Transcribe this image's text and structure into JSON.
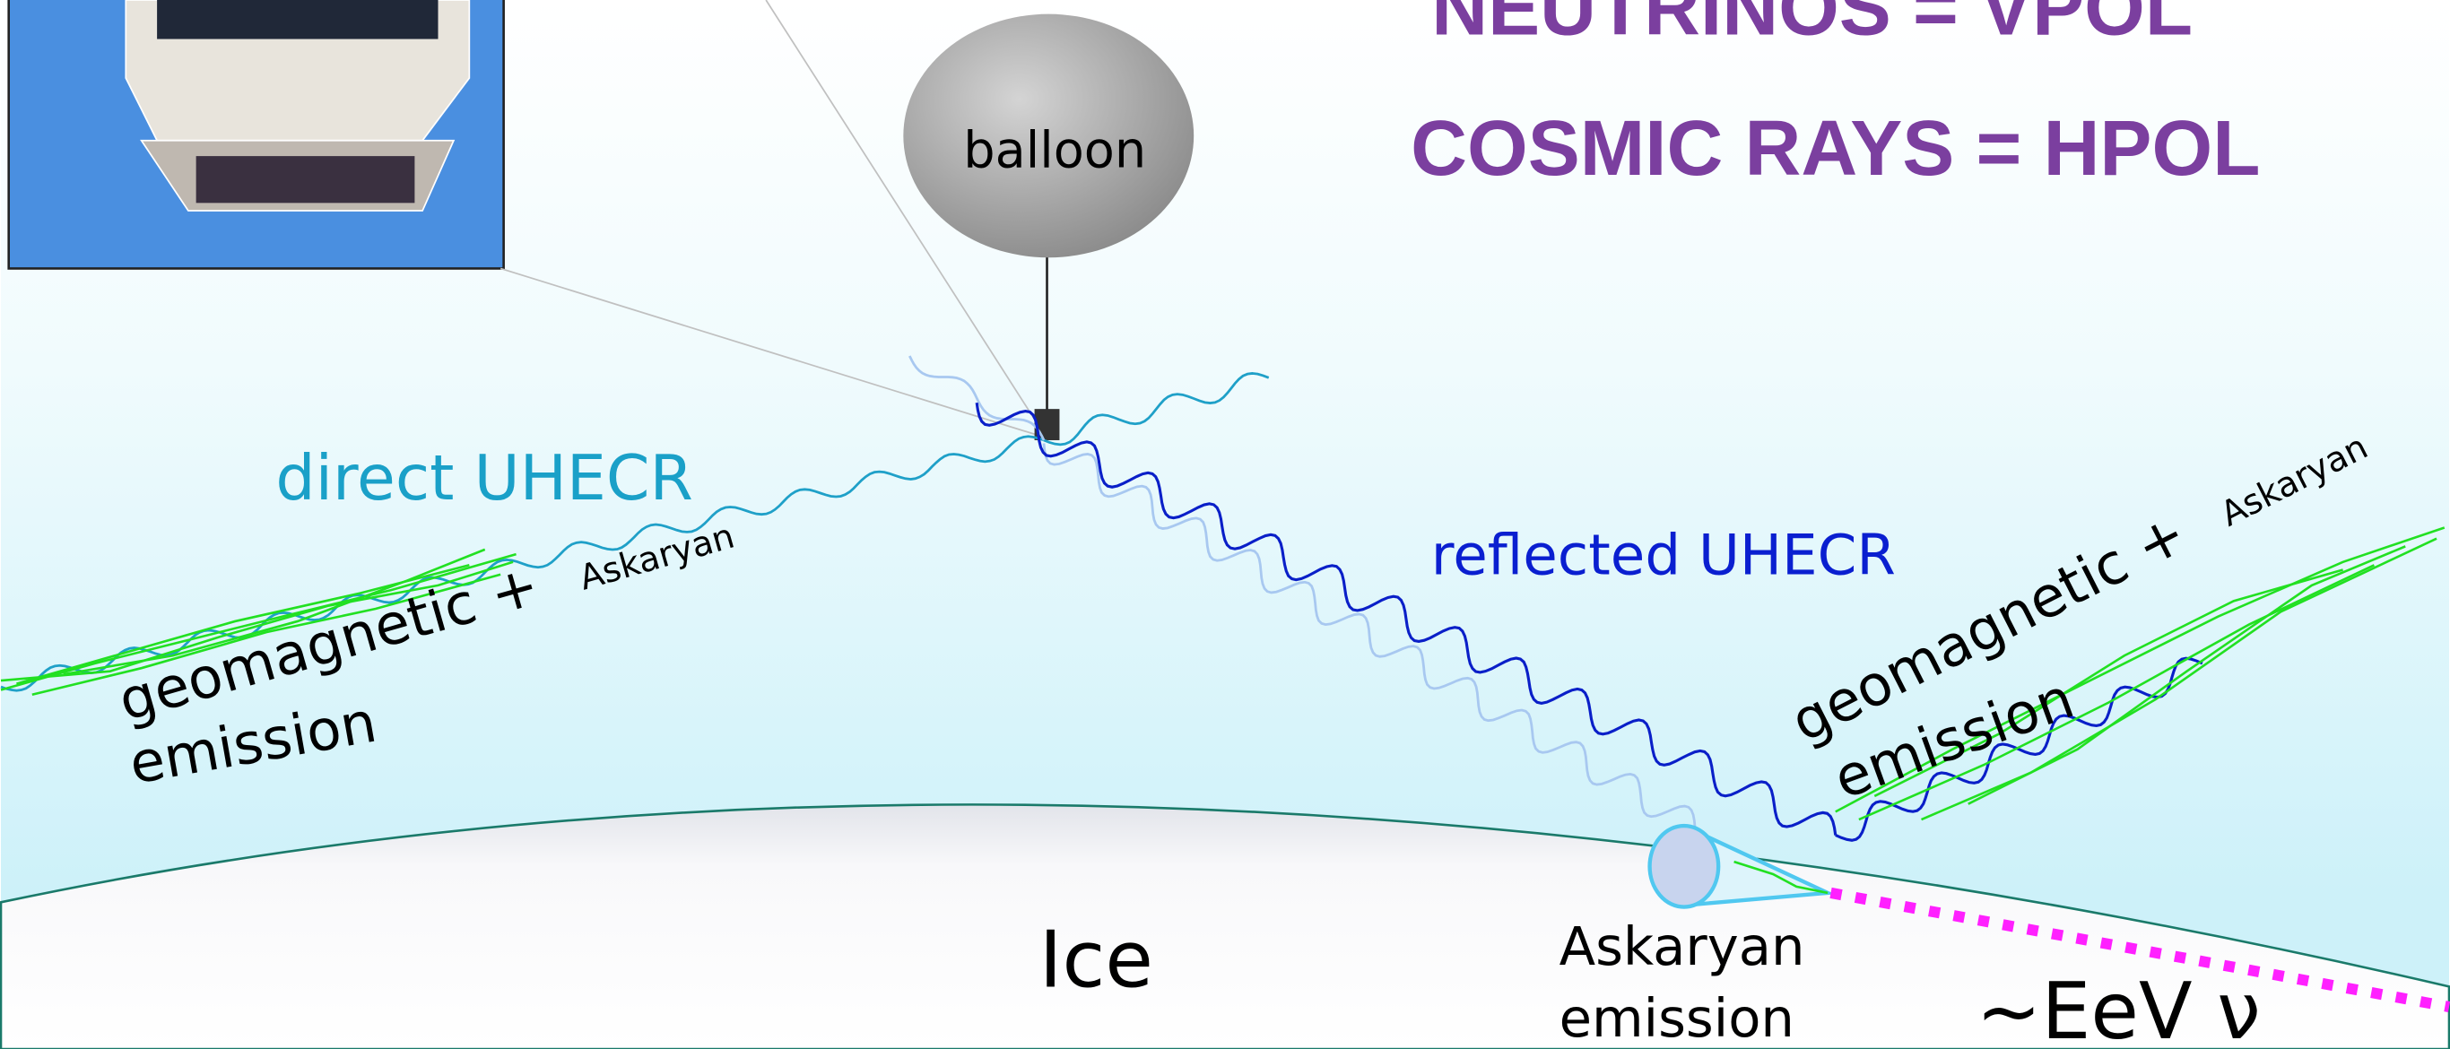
{
  "header": {
    "line1": "NEUTRINOS = VPOL",
    "line2": "COSMIC RAYS = HPOL"
  },
  "labels": {
    "balloon": "balloon",
    "direct": "direct UHECR",
    "reflected": "reflected UHECR",
    "ice": "Ice",
    "left_emission": {
      "geomagnetic": "geomagnetic +",
      "askaryan": "Askaryan",
      "emission": "emission"
    },
    "right_emission": {
      "geomagnetic": "geomagnetic +",
      "askaryan": "Askaryan",
      "emission": "emission"
    },
    "askaryan_emission": {
      "line1": "Askaryan",
      "line2": "emission"
    },
    "neutrino": "~EeV ν"
  }
}
